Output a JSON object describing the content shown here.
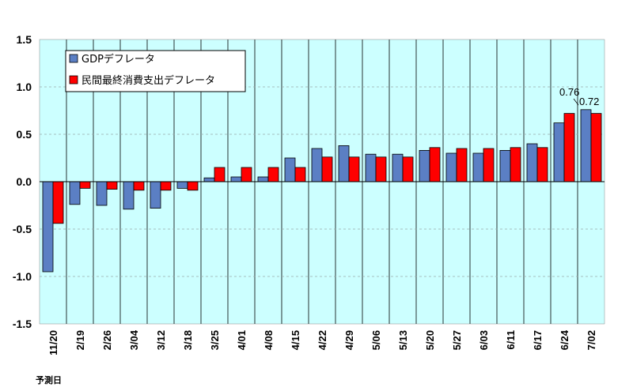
{
  "chart_data": {
    "type": "bar",
    "categories": [
      "11/20",
      "2/19",
      "2/26",
      "3/04",
      "3/12",
      "3/18",
      "3/25",
      "4/01",
      "4/08",
      "4/15",
      "4/22",
      "4/29",
      "5/06",
      "5/13",
      "5/20",
      "5/27",
      "6/03",
      "6/11",
      "6/17",
      "6/24",
      "7/02"
    ],
    "series": [
      {
        "name": "GDPデフレータ",
        "color": "#5b7fc4",
        "values": [
          -0.95,
          -0.24,
          -0.25,
          -0.29,
          -0.28,
          -0.07,
          0.04,
          0.05,
          0.05,
          0.25,
          0.35,
          0.38,
          0.29,
          0.29,
          0.33,
          0.3,
          0.3,
          0.33,
          0.4,
          0.62,
          0.76
        ]
      },
      {
        "name": "民間最終消費支出デフレータ",
        "color": "#ff0000",
        "values": [
          -0.44,
          -0.07,
          -0.08,
          -0.09,
          -0.09,
          -0.09,
          0.15,
          0.15,
          0.15,
          0.15,
          0.26,
          0.26,
          0.26,
          0.26,
          0.36,
          0.35,
          0.35,
          0.36,
          0.36,
          0.72,
          0.72
        ]
      }
    ],
    "ylim": [
      -1.5,
      1.5
    ],
    "yticks": [
      "1.5",
      "1.0",
      "0.5",
      "0.0",
      "-0.5",
      "-1.0",
      "-1.5"
    ],
    "annotations": [
      "0.76",
      "0.72"
    ],
    "footnote": "予測日",
    "legend_position": "top-left",
    "background_color": "#ccffff",
    "grid": true
  }
}
